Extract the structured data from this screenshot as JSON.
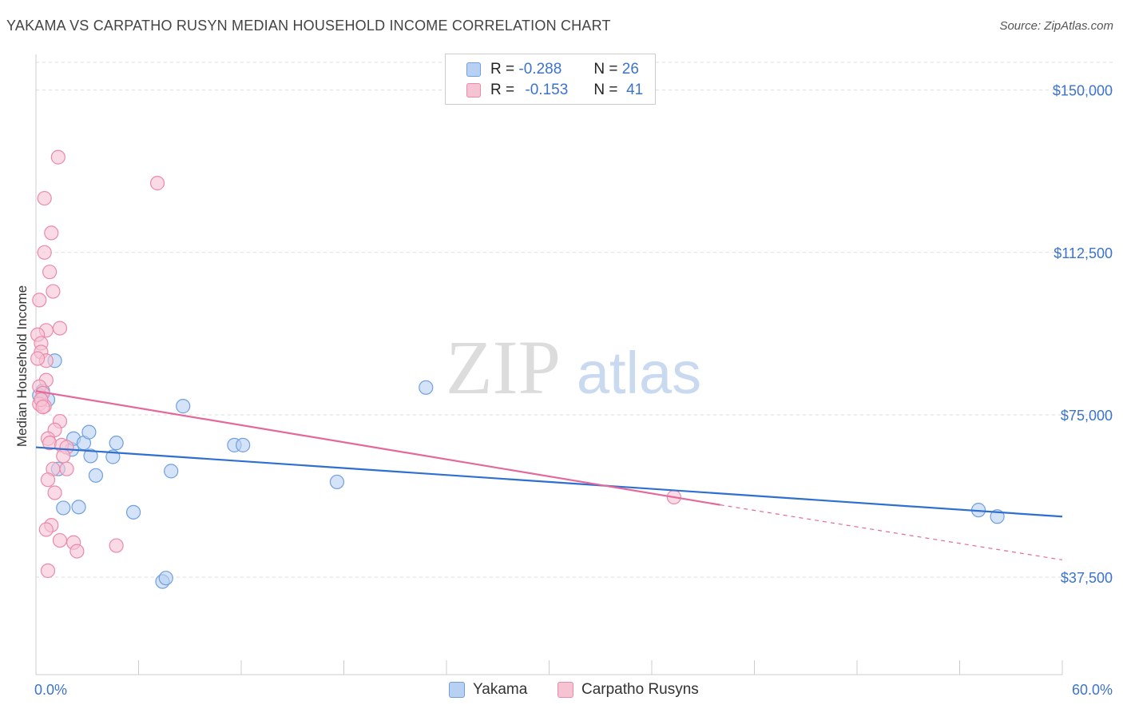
{
  "title": "YAKAMA VS CARPATHO RUSYN MEDIAN HOUSEHOLD INCOME CORRELATION CHART",
  "source": "Source: ZipAtlas.com",
  "watermark": {
    "zip": "ZIP",
    "atlas": "atlas"
  },
  "legend": {
    "r_label": "R =",
    "n_label": "N =",
    "series": [
      {
        "r": "-0.288",
        "n": "26"
      },
      {
        "r": "-0.153",
        "n": "41"
      }
    ]
  },
  "chart_data": {
    "type": "scatter",
    "title": "YAKAMA VS CARPATHO RUSYN MEDIAN HOUSEHOLD INCOME CORRELATION CHART",
    "xlabel": "",
    "ylabel": "Median Household Income",
    "xlim": [
      0,
      60
    ],
    "ylim": [
      15000,
      157500
    ],
    "x_tick_labels": [
      "0.0%",
      "60.0%"
    ],
    "y_ticks": [
      {
        "value": 37500,
        "label": "$37,500"
      },
      {
        "value": 75000,
        "label": "$75,000"
      },
      {
        "value": 112500,
        "label": "$112,500"
      },
      {
        "value": 150000,
        "label": "$150,000"
      }
    ],
    "series": [
      {
        "name": "Yakama",
        "color": "#6f9fe0",
        "fill": "#b8d0f2",
        "line_color": "#2f6fcf",
        "trend": {
          "x0": 0,
          "y0": 67500,
          "x1": 60,
          "y1": 51500
        },
        "points": [
          {
            "x": 1.1,
            "y": 87500
          },
          {
            "x": 0.4,
            "y": 80500
          },
          {
            "x": 0.7,
            "y": 78500
          },
          {
            "x": 1.3,
            "y": 62500
          },
          {
            "x": 1.6,
            "y": 53500
          },
          {
            "x": 2.1,
            "y": 67000
          },
          {
            "x": 2.2,
            "y": 69500
          },
          {
            "x": 2.5,
            "y": 53700
          },
          {
            "x": 2.8,
            "y": 68500
          },
          {
            "x": 3.1,
            "y": 71000
          },
          {
            "x": 3.2,
            "y": 65500
          },
          {
            "x": 3.5,
            "y": 61000
          },
          {
            "x": 4.7,
            "y": 68500
          },
          {
            "x": 4.5,
            "y": 65300
          },
          {
            "x": 5.7,
            "y": 52500
          },
          {
            "x": 7.4,
            "y": 36500
          },
          {
            "x": 7.6,
            "y": 37300
          },
          {
            "x": 7.9,
            "y": 62000
          },
          {
            "x": 8.6,
            "y": 77000
          },
          {
            "x": 11.6,
            "y": 68000
          },
          {
            "x": 12.1,
            "y": 68000
          },
          {
            "x": 17.6,
            "y": 59500
          },
          {
            "x": 22.8,
            "y": 81300
          },
          {
            "x": 55.1,
            "y": 53000
          },
          {
            "x": 56.2,
            "y": 51500
          },
          {
            "x": 0.2,
            "y": 79500
          }
        ]
      },
      {
        "name": "Carpatho Rusyns",
        "color": "#ea8aa8",
        "fill": "#f6c3d3",
        "line_color": "#e4699a",
        "trend": {
          "x0": 0,
          "y0": 80500,
          "x1": 40,
          "y1": 54200
        },
        "trend_dashed": {
          "x0": 40,
          "y0": 54200,
          "x1": 60,
          "y1": 41500
        },
        "points": [
          {
            "x": 1.3,
            "y": 134500
          },
          {
            "x": 0.5,
            "y": 125000
          },
          {
            "x": 0.9,
            "y": 117000
          },
          {
            "x": 0.5,
            "y": 112500
          },
          {
            "x": 0.8,
            "y": 108000
          },
          {
            "x": 1.0,
            "y": 103500
          },
          {
            "x": 0.2,
            "y": 101500
          },
          {
            "x": 1.4,
            "y": 95000
          },
          {
            "x": 0.6,
            "y": 94500
          },
          {
            "x": 0.1,
            "y": 93500
          },
          {
            "x": 0.3,
            "y": 91500
          },
          {
            "x": 0.3,
            "y": 89500
          },
          {
            "x": 0.6,
            "y": 87500
          },
          {
            "x": 0.1,
            "y": 88000
          },
          {
            "x": 0.6,
            "y": 83000
          },
          {
            "x": 0.2,
            "y": 81500
          },
          {
            "x": 0.4,
            "y": 80000
          },
          {
            "x": 0.2,
            "y": 77500
          },
          {
            "x": 0.5,
            "y": 77000
          },
          {
            "x": 1.4,
            "y": 73500
          },
          {
            "x": 1.1,
            "y": 71500
          },
          {
            "x": 0.7,
            "y": 69500
          },
          {
            "x": 0.8,
            "y": 68500
          },
          {
            "x": 1.5,
            "y": 68000
          },
          {
            "x": 1.8,
            "y": 67500
          },
          {
            "x": 1.6,
            "y": 65500
          },
          {
            "x": 1.0,
            "y": 62500
          },
          {
            "x": 1.8,
            "y": 62500
          },
          {
            "x": 0.7,
            "y": 60000
          },
          {
            "x": 1.1,
            "y": 57000
          },
          {
            "x": 0.9,
            "y": 49500
          },
          {
            "x": 0.6,
            "y": 48500
          },
          {
            "x": 1.4,
            "y": 46000
          },
          {
            "x": 2.2,
            "y": 45500
          },
          {
            "x": 2.4,
            "y": 43500
          },
          {
            "x": 4.7,
            "y": 44800
          },
          {
            "x": 0.7,
            "y": 39000
          },
          {
            "x": 7.1,
            "y": 128500
          },
          {
            "x": 37.3,
            "y": 56000
          },
          {
            "x": 0.3,
            "y": 78500
          },
          {
            "x": 0.4,
            "y": 76800
          }
        ]
      }
    ]
  }
}
